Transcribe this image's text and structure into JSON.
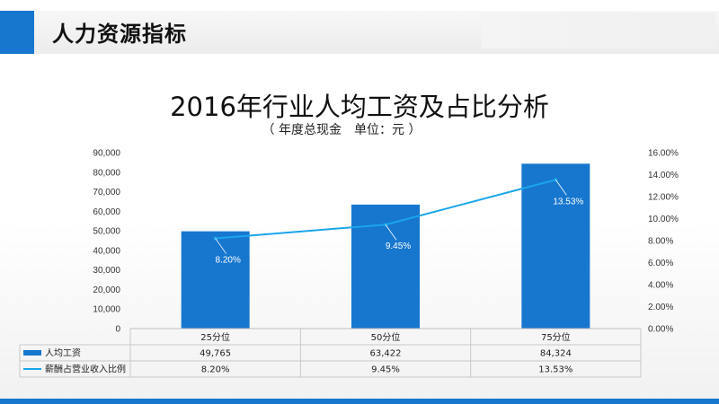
{
  "header": {
    "title": "人力资源指标"
  },
  "chart_data": {
    "type": "bar",
    "title": "2016年行业人均工资及占比分析",
    "subtitle": "（ 年度总现金　单位：元 ）",
    "categories": [
      "25分位",
      "50分位",
      "75分位"
    ],
    "series": [
      {
        "name": "人均工资",
        "type": "bar",
        "axis": "left",
        "values": [
          49765,
          63422,
          84324
        ],
        "display": [
          "49,765",
          "63,422",
          "84,324"
        ]
      },
      {
        "name": "薪酬占营业收入比例",
        "type": "line",
        "axis": "right",
        "values": [
          8.2,
          9.45,
          13.53
        ],
        "display": [
          "8.20%",
          "9.45%",
          "13.53%"
        ]
      }
    ],
    "y_left": {
      "min": 0,
      "max": 90000,
      "ticks": [
        "0",
        "10,000",
        "20,000",
        "30,000",
        "40,000",
        "50,000",
        "60,000",
        "70,000",
        "80,000",
        "90,000"
      ]
    },
    "y_right": {
      "min": 0,
      "max": 16,
      "ticks": [
        "0.00%",
        "2.00%",
        "4.00%",
        "6.00%",
        "8.00%",
        "10.00%",
        "12.00%",
        "14.00%",
        "16.00%"
      ]
    },
    "data_labels": [
      "8.20%",
      "9.45%",
      "13.53%"
    ],
    "data_table": true,
    "colors": {
      "bar": "#1777cf",
      "line": "#1aa5ec"
    }
  }
}
